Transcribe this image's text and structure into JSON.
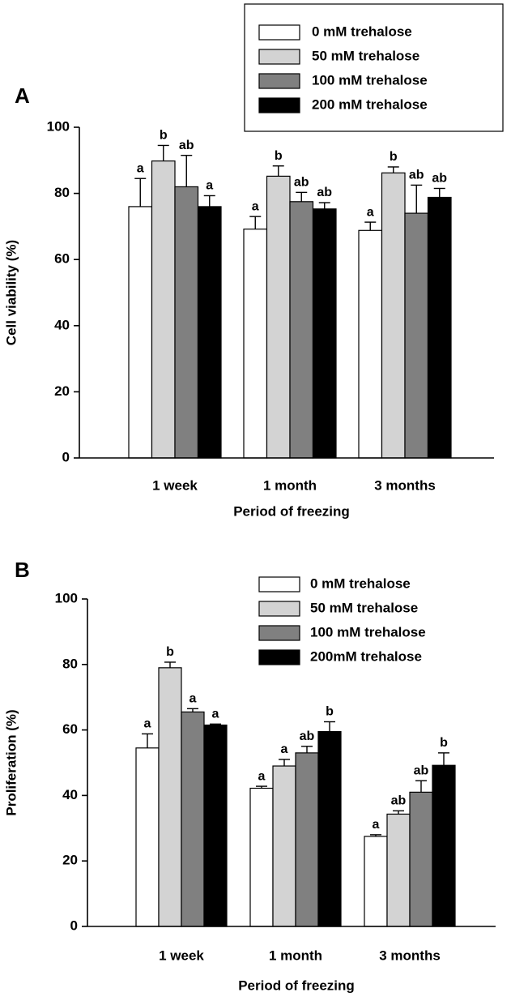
{
  "chart_data": [
    {
      "type": "bar",
      "panel_label": "A",
      "ylabel": "Cell viability (%)",
      "xlabel": "Period of freezing",
      "categories": [
        "1 week",
        "1 month",
        "3 months"
      ],
      "ylim": [
        0,
        100
      ],
      "yticks": [
        0,
        20,
        40,
        60,
        80,
        100
      ],
      "grid": false,
      "legend_box": true,
      "series": [
        {
          "name": "0 mM trehalose",
          "color": "#ffffff",
          "values": [
            76,
            69.2,
            68.8
          ],
          "errors": [
            8.5,
            3.8,
            2.5
          ],
          "letters": [
            "a",
            "a",
            "a"
          ]
        },
        {
          "name": "50 mM trehalose",
          "color": "#d3d3d3",
          "values": [
            89.8,
            85.2,
            86.2
          ],
          "errors": [
            4.7,
            3.1,
            1.8
          ],
          "letters": [
            "b",
            "b",
            "b"
          ]
        },
        {
          "name": "100 mM trehalose",
          "color": "#808080",
          "values": [
            82,
            77.5,
            74
          ],
          "errors": [
            9.5,
            2.8,
            8.5
          ],
          "letters": [
            "ab",
            "ab",
            "ab"
          ]
        },
        {
          "name": "200 mM trehalose",
          "color": "#000000",
          "values": [
            76,
            75.3,
            78.8
          ],
          "errors": [
            3.3,
            1.9,
            2.7
          ],
          "letters": [
            "a",
            "ab",
            "ab"
          ]
        }
      ]
    },
    {
      "type": "bar",
      "panel_label": "B",
      "ylabel": "Proliferation (%)",
      "xlabel": "Period of freezing",
      "categories": [
        "1 week",
        "1 month",
        "3 months"
      ],
      "ylim": [
        0,
        100
      ],
      "yticks": [
        0,
        20,
        40,
        60,
        80,
        100
      ],
      "grid": false,
      "legend_box": false,
      "series": [
        {
          "name": "0 mM trehalose",
          "color": "#ffffff",
          "values": [
            54.5,
            42.2,
            27.5
          ],
          "errors": [
            4.3,
            0.6,
            0.5
          ],
          "letters": [
            "a",
            "a",
            "a"
          ]
        },
        {
          "name": "50 mM trehalose",
          "color": "#d3d3d3",
          "values": [
            79,
            49,
            34.3
          ],
          "errors": [
            1.7,
            2,
            1
          ],
          "letters": [
            "b",
            "a",
            "ab"
          ]
        },
        {
          "name": "100 mM trehalose",
          "color": "#808080",
          "values": [
            65.5,
            53,
            41
          ],
          "errors": [
            1,
            2,
            3.5
          ],
          "letters": [
            "a",
            "ab",
            "ab"
          ]
        },
        {
          "name": "200mM trehalose",
          "color": "#000000",
          "values": [
            61.5,
            59.5,
            49.2
          ],
          "errors": [
            0.3,
            3,
            3.8
          ],
          "letters": [
            "a",
            "b",
            "b"
          ]
        }
      ]
    }
  ]
}
